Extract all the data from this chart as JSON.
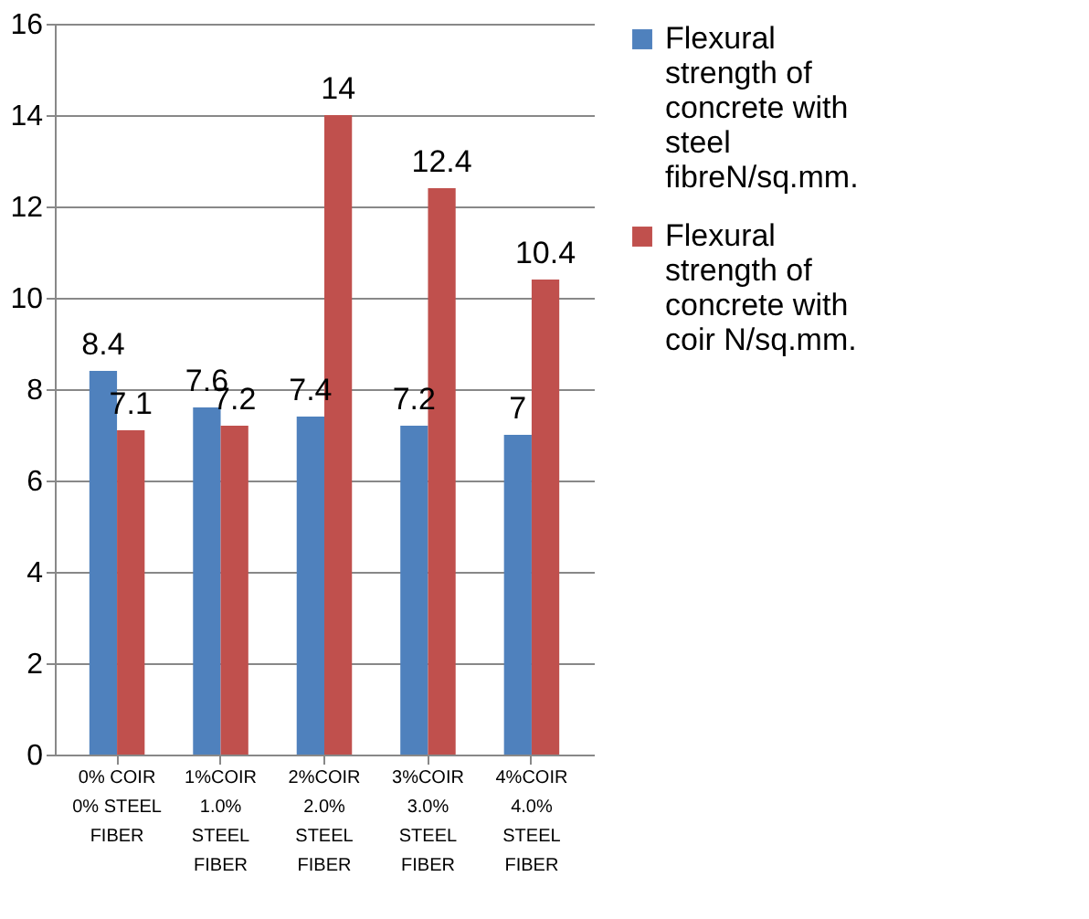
{
  "chart_data": {
    "type": "bar",
    "categories": [
      "0% COIR\n0% STEEL\nFIBER",
      "1%COIR\n1.0%\nSTEEL\nFIBER",
      "2%COIR\n2.0%\nSTEEL\nFIBER",
      "3%COIR\n3.0%\nSTEEL\nFIBER",
      "4%COIR\n4.0%\nSTEEL\nFIBER"
    ],
    "series": [
      {
        "name": "Flexural strength of concrete with steel fibreN/sq.mm.",
        "color": "#4f81bd",
        "values": [
          8.4,
          7.6,
          7.4,
          7.2,
          7
        ]
      },
      {
        "name": "Flexural strength of concrete with coir  N/sq.mm.",
        "color": "#c0504d",
        "values": [
          7.1,
          7.2,
          14,
          12.4,
          10.4
        ]
      }
    ],
    "ylim": [
      0,
      16
    ],
    "yticks": [
      0,
      2,
      4,
      6,
      8,
      10,
      12,
      14,
      16
    ],
    "grid": "y",
    "legend": "right",
    "data_labels": true
  }
}
